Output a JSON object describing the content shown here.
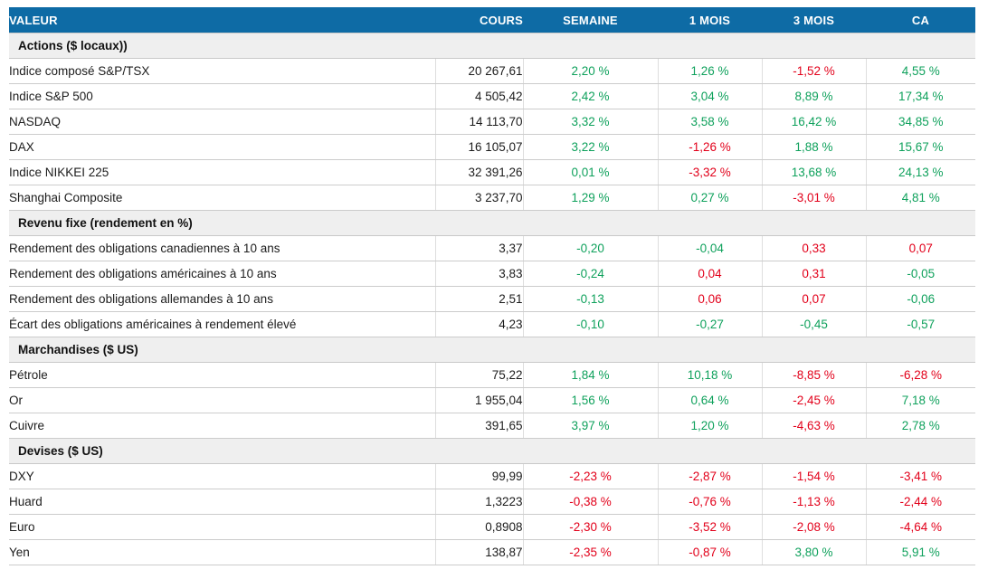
{
  "colors": {
    "header_bg": "#0E6BA5",
    "header_text": "#ffffff",
    "section_bg": "#EFEFEF",
    "positive": "#0FA15C",
    "negative": "#E2001A",
    "row_border": "#cccccc"
  },
  "table": {
    "columns": [
      {
        "label": "VALEUR"
      },
      {
        "label": "COURS"
      },
      {
        "label": "SEMAINE"
      },
      {
        "label": "1 MOIS"
      },
      {
        "label": "3 MOIS"
      },
      {
        "label": "CA"
      }
    ],
    "sections": [
      {
        "title": "Actions ($ locaux))",
        "rows": [
          {
            "label": "Indice composé S&P/TSX",
            "cours": "20 267,61",
            "changes": [
              {
                "text": "2,20 %",
                "tone": "up"
              },
              {
                "text": "1,26 %",
                "tone": "up"
              },
              {
                "text": "-1,52 %",
                "tone": "down"
              },
              {
                "text": "4,55 %",
                "tone": "up"
              }
            ]
          },
          {
            "label": "Indice S&P 500",
            "cours": "4 505,42",
            "changes": [
              {
                "text": "2,42 %",
                "tone": "up"
              },
              {
                "text": "3,04 %",
                "tone": "up"
              },
              {
                "text": "8,89 %",
                "tone": "up"
              },
              {
                "text": "17,34 %",
                "tone": "up"
              }
            ]
          },
          {
            "label": "NASDAQ",
            "cours": "14 113,70",
            "changes": [
              {
                "text": "3,32 %",
                "tone": "up"
              },
              {
                "text": "3,58 %",
                "tone": "up"
              },
              {
                "text": "16,42 %",
                "tone": "up"
              },
              {
                "text": "34,85 %",
                "tone": "up"
              }
            ]
          },
          {
            "label": "DAX",
            "cours": "16 105,07",
            "changes": [
              {
                "text": "3,22 %",
                "tone": "up"
              },
              {
                "text": "-1,26 %",
                "tone": "down"
              },
              {
                "text": "1,88 %",
                "tone": "up"
              },
              {
                "text": "15,67 %",
                "tone": "up"
              }
            ]
          },
          {
            "label": "Indice NIKKEI 225",
            "cours": "32 391,26",
            "changes": [
              {
                "text": "0,01 %",
                "tone": "up"
              },
              {
                "text": "-3,32 %",
                "tone": "down"
              },
              {
                "text": "13,68 %",
                "tone": "up"
              },
              {
                "text": "24,13 %",
                "tone": "up"
              }
            ]
          },
          {
            "label": "Shanghai Composite",
            "cours": "3 237,70",
            "changes": [
              {
                "text": "1,29 %",
                "tone": "up"
              },
              {
                "text": "0,27 %",
                "tone": "up"
              },
              {
                "text": "-3,01 %",
                "tone": "down"
              },
              {
                "text": "4,81 %",
                "tone": "up"
              }
            ]
          }
        ]
      },
      {
        "title": "Revenu fixe (rendement en %)",
        "rows": [
          {
            "label": "Rendement des obligations canadiennes à 10 ans",
            "cours": "3,37",
            "changes": [
              {
                "text": "-0,20",
                "tone": "up"
              },
              {
                "text": "-0,04",
                "tone": "up"
              },
              {
                "text": "0,33",
                "tone": "down"
              },
              {
                "text": "0,07",
                "tone": "down"
              }
            ]
          },
          {
            "label": "Rendement des obligations américaines à 10 ans",
            "cours": "3,83",
            "changes": [
              {
                "text": "-0,24",
                "tone": "up"
              },
              {
                "text": "0,04",
                "tone": "down"
              },
              {
                "text": "0,31",
                "tone": "down"
              },
              {
                "text": "-0,05",
                "tone": "up"
              }
            ]
          },
          {
            "label": "Rendement des obligations allemandes à 10 ans",
            "cours": "2,51",
            "changes": [
              {
                "text": "-0,13",
                "tone": "up"
              },
              {
                "text": "0,06",
                "tone": "down"
              },
              {
                "text": "0,07",
                "tone": "down"
              },
              {
                "text": "-0,06",
                "tone": "up"
              }
            ]
          },
          {
            "label": "Écart des obligations américaines à rendement élevé",
            "cours": "4,23",
            "changes": [
              {
                "text": "-0,10",
                "tone": "up"
              },
              {
                "text": "-0,27",
                "tone": "up"
              },
              {
                "text": "-0,45",
                "tone": "up"
              },
              {
                "text": "-0,57",
                "tone": "up"
              }
            ]
          }
        ]
      },
      {
        "title": "Marchandises ($ US)",
        "rows": [
          {
            "label": "Pétrole",
            "cours": "75,22",
            "changes": [
              {
                "text": "1,84 %",
                "tone": "up"
              },
              {
                "text": "10,18 %",
                "tone": "up"
              },
              {
                "text": "-8,85 %",
                "tone": "down"
              },
              {
                "text": "-6,28 %",
                "tone": "down"
              }
            ]
          },
          {
            "label": "Or",
            "cours": "1 955,04",
            "changes": [
              {
                "text": "1,56 %",
                "tone": "up"
              },
              {
                "text": "0,64 %",
                "tone": "up"
              },
              {
                "text": "-2,45 %",
                "tone": "down"
              },
              {
                "text": "7,18 %",
                "tone": "up"
              }
            ]
          },
          {
            "label": "Cuivre",
            "cours": "391,65",
            "changes": [
              {
                "text": "3,97 %",
                "tone": "up"
              },
              {
                "text": "1,20 %",
                "tone": "up"
              },
              {
                "text": "-4,63 %",
                "tone": "down"
              },
              {
                "text": "2,78 %",
                "tone": "up"
              }
            ]
          }
        ]
      },
      {
        "title": "Devises ($ US)",
        "rows": [
          {
            "label": "DXY",
            "cours": "99,99",
            "changes": [
              {
                "text": "-2,23 %",
                "tone": "down"
              },
              {
                "text": "-2,87 %",
                "tone": "down"
              },
              {
                "text": "-1,54 %",
                "tone": "down"
              },
              {
                "text": "-3,41 %",
                "tone": "down"
              }
            ]
          },
          {
            "label": "Huard",
            "cours": "1,3223",
            "changes": [
              {
                "text": "-0,38 %",
                "tone": "down"
              },
              {
                "text": "-0,76 %",
                "tone": "down"
              },
              {
                "text": "-1,13 %",
                "tone": "down"
              },
              {
                "text": "-2,44 %",
                "tone": "down"
              }
            ]
          },
          {
            "label": "Euro",
            "cours": "0,8908",
            "changes": [
              {
                "text": "-2,30 %",
                "tone": "down"
              },
              {
                "text": "-3,52 %",
                "tone": "down"
              },
              {
                "text": "-2,08 %",
                "tone": "down"
              },
              {
                "text": "-4,64 %",
                "tone": "down"
              }
            ]
          },
          {
            "label": "Yen",
            "cours": "138,87",
            "changes": [
              {
                "text": "-2,35 %",
                "tone": "down"
              },
              {
                "text": "-0,87 %",
                "tone": "down"
              },
              {
                "text": "3,80 %",
                "tone": "up"
              },
              {
                "text": "5,91 %",
                "tone": "up"
              }
            ]
          }
        ]
      }
    ]
  }
}
